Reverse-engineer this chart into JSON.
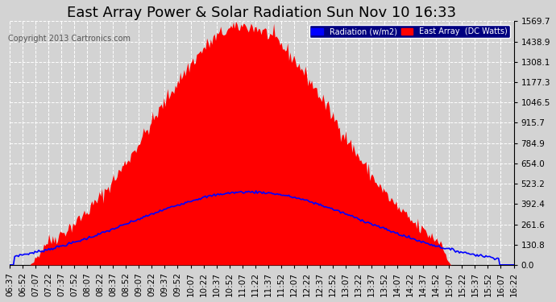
{
  "title": "East Array Power & Solar Radiation Sun Nov 10 16:33",
  "copyright": "Copyright 2013 Cartronics.com",
  "legend_labels": [
    "Radiation (w/m2)",
    "East Array  (DC Watts)"
  ],
  "legend_colors": [
    "#0000ff",
    "#ff0000"
  ],
  "bg_color": "#d3d3d3",
  "plot_bg_color": "#d3d3d3",
  "y_max": 1569.7,
  "y_ticks": [
    0.0,
    130.8,
    261.6,
    392.4,
    523.2,
    654.0,
    784.9,
    915.7,
    1046.5,
    1177.3,
    1308.1,
    1438.9,
    1569.7
  ],
  "x_labels": [
    "06:37",
    "06:52",
    "07:07",
    "07:22",
    "07:37",
    "07:52",
    "08:07",
    "08:22",
    "08:37",
    "08:52",
    "09:07",
    "09:22",
    "09:37",
    "09:52",
    "10:07",
    "10:22",
    "10:37",
    "10:52",
    "11:07",
    "11:22",
    "11:37",
    "11:52",
    "12:07",
    "12:22",
    "12:37",
    "12:52",
    "13:07",
    "13:22",
    "13:37",
    "13:52",
    "14:07",
    "14:22",
    "14:37",
    "14:52",
    "15:07",
    "15:22",
    "15:37",
    "15:52",
    "16:07",
    "16:22"
  ],
  "red_area_color": "#ff0000",
  "blue_line_color": "#0000ff",
  "grid_color": "#ffffff",
  "title_color": "#000000",
  "title_fontsize": 13,
  "tick_fontsize": 7.5
}
